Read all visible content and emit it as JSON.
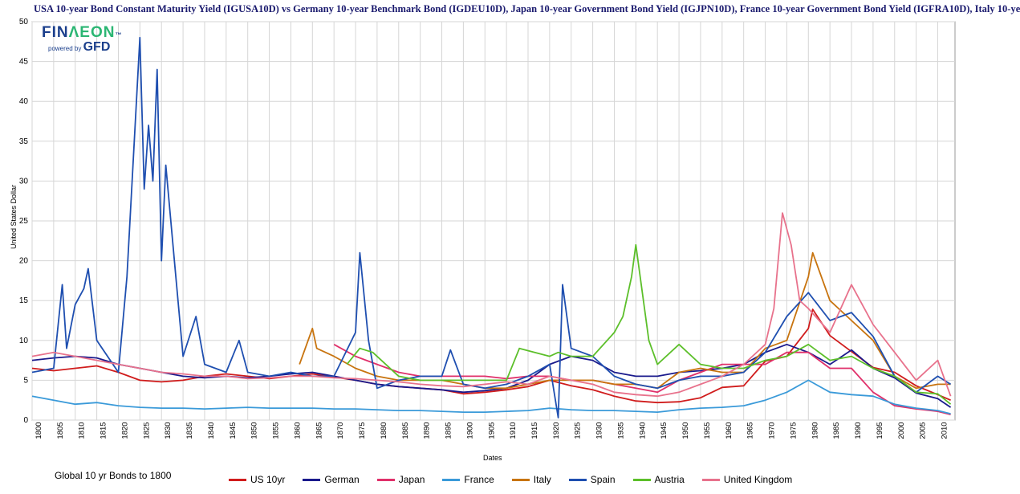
{
  "chart_data": {
    "type": "line",
    "title": "USA 10-year Bond Constant Maturity Yield (IGUSA10D)  vs  Germany 10-year Benchmark Bond (IGDEU10D), Japan 10-year Government Bond Yield (IGJPN10D), France 10-year Government Bond Yield (IGFRA10D), Italy 10-ye",
    "xlabel": "Dates",
    "ylabel": "United States Dollar",
    "xlim": [
      1800,
      2014
    ],
    "ylim": [
      0,
      50
    ],
    "yticks": [
      0,
      5,
      10,
      15,
      20,
      25,
      30,
      35,
      40,
      45,
      50
    ],
    "xticks": [
      1800,
      1805,
      1810,
      1815,
      1820,
      1825,
      1830,
      1835,
      1840,
      1845,
      1850,
      1855,
      1860,
      1865,
      1870,
      1875,
      1880,
      1885,
      1890,
      1895,
      1900,
      1905,
      1910,
      1915,
      1920,
      1925,
      1930,
      1935,
      1940,
      1945,
      1950,
      1955,
      1960,
      1965,
      1970,
      1975,
      1980,
      1985,
      1990,
      1995,
      2000,
      2005,
      2010
    ],
    "grid": true,
    "legend_position": "bottom",
    "footnote": "Global 10 yr Bonds to 1800",
    "series": [
      {
        "name": "US 10yr",
        "color": "#d01c1c",
        "x": [
          1800,
          1805,
          1810,
          1815,
          1820,
          1825,
          1830,
          1835,
          1840,
          1845,
          1850,
          1855,
          1860,
          1865,
          1870,
          1875,
          1880,
          1885,
          1890,
          1895,
          1900,
          1905,
          1910,
          1915,
          1920,
          1925,
          1930,
          1935,
          1940,
          1945,
          1950,
          1955,
          1960,
          1965,
          1970,
          1975,
          1980,
          1981,
          1985,
          1990,
          1995,
          2000,
          2005,
          2010,
          2013
        ],
        "y": [
          6.5,
          6.2,
          6.5,
          6.8,
          6.0,
          5.0,
          4.8,
          5.0,
          5.5,
          5.8,
          5.5,
          5.2,
          5.5,
          5.8,
          5.4,
          5.0,
          4.5,
          4.2,
          4.0,
          3.8,
          3.3,
          3.5,
          3.8,
          4.2,
          5.0,
          4.3,
          3.8,
          3.0,
          2.4,
          2.2,
          2.3,
          2.8,
          4.1,
          4.3,
          7.4,
          8.0,
          11.5,
          13.9,
          10.6,
          8.6,
          6.6,
          6.0,
          4.3,
          3.2,
          2.5
        ]
      },
      {
        "name": "German",
        "color": "#1a1a8c",
        "x": [
          1800,
          1805,
          1810,
          1815,
          1820,
          1825,
          1830,
          1835,
          1840,
          1845,
          1850,
          1855,
          1860,
          1865,
          1870,
          1875,
          1880,
          1885,
          1890,
          1895,
          1900,
          1905,
          1910,
          1915,
          1920,
          1925,
          1930,
          1935,
          1940,
          1945,
          1950,
          1955,
          1960,
          1965,
          1970,
          1975,
          1980,
          1985,
          1990,
          1995,
          2000,
          2005,
          2010,
          2013
        ],
        "y": [
          7.5,
          7.8,
          8.0,
          7.8,
          7.0,
          6.5,
          6.0,
          5.5,
          5.3,
          5.5,
          5.3,
          5.5,
          5.8,
          6.0,
          5.5,
          5.0,
          4.5,
          4.2,
          4.0,
          3.8,
          3.5,
          3.7,
          4.0,
          5.0,
          7.0,
          8.0,
          7.5,
          6.0,
          5.5,
          5.5,
          6.0,
          6.2,
          6.5,
          7.0,
          8.5,
          9.5,
          8.5,
          7.0,
          8.8,
          6.5,
          5.3,
          3.4,
          2.7,
          1.6
        ]
      },
      {
        "name": "Japan",
        "color": "#e0306a",
        "x": [
          1870,
          1875,
          1880,
          1885,
          1890,
          1895,
          1900,
          1905,
          1910,
          1915,
          1920,
          1925,
          1930,
          1935,
          1940,
          1945,
          1950,
          1955,
          1960,
          1965,
          1970,
          1975,
          1980,
          1985,
          1990,
          1995,
          2000,
          2005,
          2010,
          2013
        ],
        "y": [
          9.5,
          8.0,
          7.0,
          6.0,
          5.5,
          5.5,
          5.5,
          5.5,
          5.2,
          5.5,
          5.5,
          5.0,
          5.0,
          4.5,
          4.0,
          3.5,
          5.0,
          6.0,
          7.0,
          7.0,
          7.0,
          8.5,
          8.5,
          6.5,
          6.5,
          3.5,
          1.8,
          1.4,
          1.1,
          0.7
        ]
      },
      {
        "name": "France",
        "color": "#3a9ad9",
        "x": [
          1800,
          1805,
          1810,
          1815,
          1820,
          1825,
          1830,
          1835,
          1840,
          1845,
          1850,
          1855,
          1860,
          1865,
          1870,
          1875,
          1880,
          1885,
          1890,
          1895,
          1900,
          1905,
          1910,
          1915,
          1920,
          1925,
          1930,
          1935,
          1940,
          1945,
          1950,
          1955,
          1960,
          1965,
          1970,
          1975,
          1980,
          1985,
          1990,
          1995,
          2000,
          2005,
          2010,
          2013
        ],
        "y": [
          3.0,
          2.5,
          2.0,
          2.2,
          1.8,
          1.6,
          1.5,
          1.5,
          1.4,
          1.5,
          1.6,
          1.5,
          1.5,
          1.5,
          1.4,
          1.4,
          1.3,
          1.2,
          1.2,
          1.1,
          1.0,
          1.0,
          1.1,
          1.2,
          1.5,
          1.3,
          1.2,
          1.2,
          1.1,
          1.0,
          1.3,
          1.5,
          1.6,
          1.8,
          2.5,
          3.5,
          5.0,
          3.5,
          3.2,
          3.0,
          2.0,
          1.5,
          1.2,
          0.8
        ]
      },
      {
        "name": "Italy",
        "color": "#c8740f",
        "x": [
          1862,
          1865,
          1866,
          1870,
          1875,
          1880,
          1885,
          1890,
          1895,
          1900,
          1905,
          1910,
          1915,
          1920,
          1925,
          1930,
          1935,
          1940,
          1945,
          1950,
          1955,
          1960,
          1965,
          1970,
          1975,
          1980,
          1981,
          1985,
          1990,
          1995,
          2000,
          2005,
          2010,
          2013
        ],
        "y": [
          7.0,
          11.5,
          9.0,
          8.0,
          6.5,
          5.5,
          5.0,
          5.0,
          5.0,
          4.5,
          4.0,
          4.0,
          4.5,
          5.0,
          5.0,
          5.0,
          4.5,
          4.5,
          4.0,
          6.0,
          6.5,
          6.0,
          6.0,
          9.0,
          10.0,
          18.0,
          21.0,
          15.0,
          12.5,
          10.0,
          5.5,
          4.0,
          4.5,
          4.5
        ]
      },
      {
        "name": "Spain",
        "color": "#1f4fb0",
        "x": [
          1800,
          1805,
          1807,
          1808,
          1810,
          1812,
          1813,
          1815,
          1820,
          1822,
          1825,
          1826,
          1827,
          1828,
          1829,
          1830,
          1831,
          1833,
          1835,
          1838,
          1840,
          1845,
          1848,
          1850,
          1855,
          1860,
          1865,
          1870,
          1875,
          1876,
          1877,
          1878,
          1880,
          1885,
          1890,
          1895,
          1897,
          1900,
          1905,
          1910,
          1915,
          1920,
          1922,
          1923,
          1925,
          1930,
          1935,
          1940,
          1945,
          1950,
          1955,
          1960,
          1965,
          1970,
          1975,
          1980,
          1985,
          1990,
          1995,
          2000,
          2005,
          2010,
          2013
        ],
        "y": [
          6.0,
          6.5,
          17.0,
          9.0,
          14.5,
          16.5,
          19.0,
          10.0,
          6.0,
          18.0,
          48.0,
          29.0,
          37.0,
          30.0,
          44.0,
          20.0,
          32.0,
          20.0,
          8.0,
          13.0,
          7.0,
          6.0,
          10.0,
          6.0,
          5.5,
          6.0,
          5.5,
          5.5,
          11.0,
          21.0,
          15.5,
          10.0,
          4.0,
          5.0,
          5.5,
          5.5,
          8.8,
          4.5,
          4.0,
          4.5,
          5.5,
          7.0,
          0.3,
          17.0,
          9.0,
          8.0,
          5.5,
          4.5,
          4.0,
          5.0,
          5.5,
          5.5,
          6.0,
          8.5,
          13.0,
          16.0,
          12.5,
          13.5,
          10.5,
          5.5,
          3.5,
          5.5,
          4.5
        ]
      },
      {
        "name": "Austria",
        "color": "#5cbf2a",
        "x": [
          1873,
          1876,
          1879,
          1885,
          1890,
          1895,
          1900,
          1905,
          1910,
          1913,
          1920,
          1922,
          1925,
          1930,
          1935,
          1937,
          1939,
          1940,
          1943,
          1945,
          1950,
          1955,
          1960,
          1965,
          1970,
          1975,
          1980,
          1985,
          1990,
          1995,
          2000,
          2005,
          2010,
          2013
        ],
        "y": [
          7.0,
          9.0,
          8.5,
          5.5,
          5.0,
          5.0,
          5.0,
          5.0,
          5.0,
          9.0,
          8.0,
          8.5,
          8.0,
          8.0,
          11.0,
          13.0,
          18.0,
          22.0,
          10.0,
          7.0,
          9.5,
          7.0,
          6.5,
          6.5,
          7.5,
          8.0,
          9.5,
          7.5,
          8.0,
          6.5,
          5.5,
          3.5,
          3.3,
          2.0
        ]
      },
      {
        "name": "United Kingdom",
        "color": "#e8728c",
        "x": [
          1800,
          1805,
          1810,
          1815,
          1820,
          1825,
          1830,
          1835,
          1840,
          1845,
          1850,
          1855,
          1860,
          1865,
          1870,
          1875,
          1880,
          1885,
          1890,
          1895,
          1900,
          1905,
          1910,
          1915,
          1920,
          1925,
          1930,
          1935,
          1940,
          1945,
          1950,
          1955,
          1960,
          1965,
          1970,
          1972,
          1974,
          1976,
          1978,
          1980,
          1985,
          1990,
          1995,
          2000,
          2005,
          2010,
          2013
        ],
        "y": [
          8.0,
          8.5,
          8.0,
          7.5,
          7.0,
          6.5,
          6.0,
          5.8,
          5.5,
          5.5,
          5.2,
          5.3,
          5.5,
          5.5,
          5.3,
          5.2,
          5.0,
          4.8,
          4.5,
          4.3,
          4.2,
          4.5,
          4.8,
          4.5,
          5.5,
          5.0,
          4.5,
          3.5,
          3.2,
          3.0,
          3.5,
          4.5,
          5.5,
          7.0,
          9.5,
          14.0,
          26.0,
          22.0,
          15.0,
          14.0,
          11.0,
          17.0,
          12.0,
          8.5,
          5.0,
          7.5,
          3.0
        ]
      }
    ]
  },
  "logo": {
    "brand_a": "FIN",
    "brand_b": "ΛEON",
    "tm": "™",
    "powered": "powered by",
    "gfd": "GFD"
  }
}
